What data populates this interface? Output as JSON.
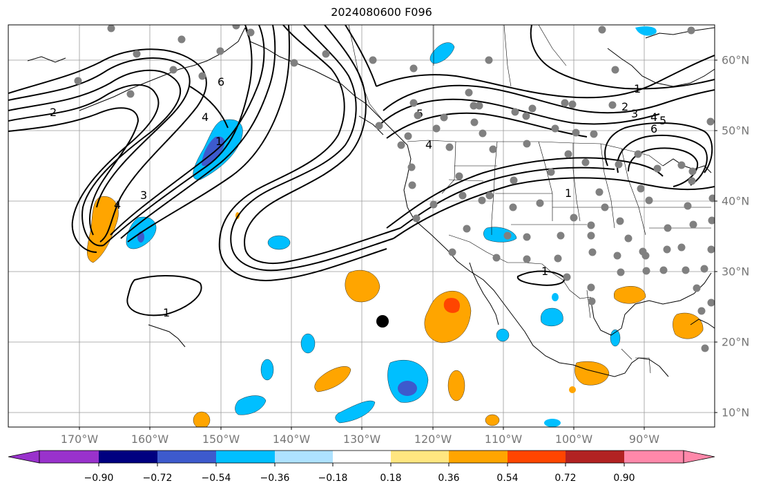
{
  "title": "2024080600 F096",
  "map": {
    "lon_labels": [
      "170°W",
      "160°W",
      "150°W",
      "140°W",
      "130°W",
      "120°W",
      "110°W",
      "100°W",
      "90°W"
    ],
    "lat_labels": [
      "60°N",
      "50°N",
      "40°N",
      "30°N",
      "20°N",
      "10°N"
    ],
    "contour_labels": [
      "1",
      "1",
      "1",
      "1",
      "1",
      "2",
      "2",
      "3",
      "3",
      "4",
      "4",
      "4",
      "4",
      "5",
      "5",
      "6",
      "6"
    ],
    "marker": "storm-center-marker",
    "station_dots_color": "#808080"
  },
  "colorbar": {
    "ticks": [
      "−0.90",
      "−0.72",
      "−0.54",
      "−0.36",
      "−0.18",
      "0.18",
      "0.36",
      "0.54",
      "0.72",
      "0.90"
    ],
    "colors": [
      "#9932cc",
      "#000080",
      "#3d5acd",
      "#00bfff",
      "#aee2ff",
      "#ffffff",
      "#ffe680",
      "#ffa500",
      "#ff4500",
      "#b22222",
      "#ff88aa"
    ]
  }
}
